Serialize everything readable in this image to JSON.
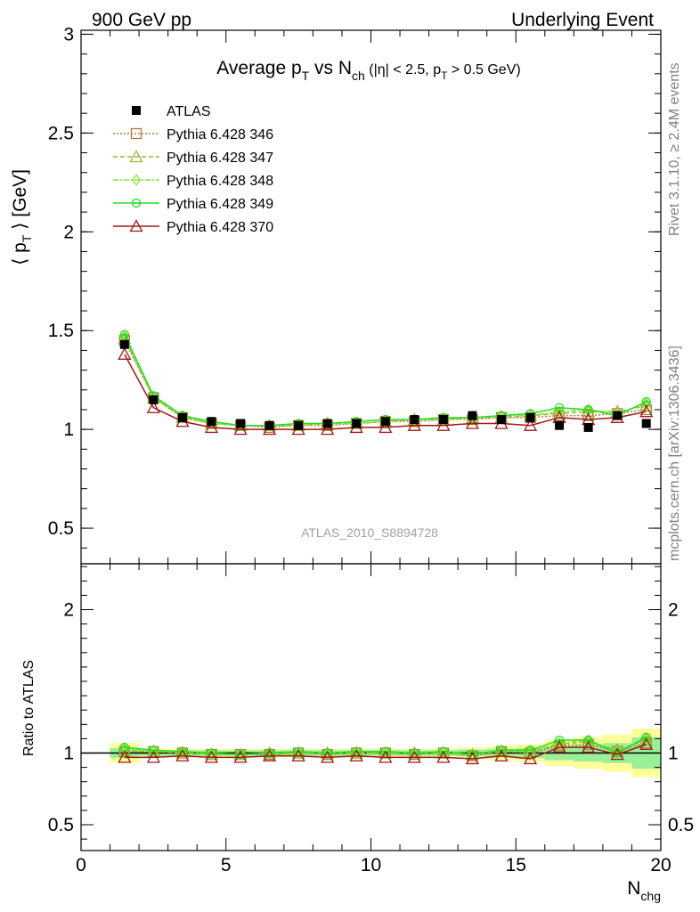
{
  "header": {
    "left": "900 GeV pp",
    "right": "Underlying Event"
  },
  "side": {
    "rivet": "Rivet 3.1.10, ≥ 2.4M events",
    "mcplots": "mcplots.cern.ch [arXiv:1306.3436]"
  },
  "chart_data": [
    {
      "type": "scatter",
      "title_main": "Average p",
      "title_sub_T": "T",
      "title_vs": " vs N",
      "title_sub_ch": "ch",
      "title_cond_a": " (|η| < 2.5, p",
      "title_cond_sub": "T",
      "title_cond_b": " > 0.5 GeV)",
      "watermark": "ATLAS_2010_S8894728",
      "ylabel_a": "⟨ p",
      "ylabel_sub": "T",
      "ylabel_b": " ⟩ [GeV]",
      "xlim": [
        0,
        20
      ],
      "ylim": [
        0.32,
        3.02
      ],
      "yticks": [
        0.5,
        1,
        1.5,
        2,
        2.5,
        3
      ],
      "ytick_labels": [
        "0.5",
        "1",
        "1.5",
        "2",
        "2.5",
        "3"
      ],
      "x": [
        1.5,
        2.5,
        3.5,
        4.5,
        5.5,
        6.5,
        7.5,
        8.5,
        9.5,
        10.5,
        11.5,
        12.5,
        13.5,
        14.5,
        15.5,
        16.5,
        17.5,
        18.5,
        19.5
      ],
      "data": {
        "name": "ATLAS",
        "color": "#000000",
        "values": [
          1.43,
          1.15,
          1.06,
          1.04,
          1.03,
          1.02,
          1.02,
          1.03,
          1.03,
          1.04,
          1.05,
          1.05,
          1.07,
          1.05,
          1.06,
          1.02,
          1.01,
          1.07,
          1.03
        ]
      },
      "series": [
        {
          "name": "Pythia 6.428 346",
          "color": "#b07a3a",
          "marker": "square",
          "dash": "2,2",
          "values": [
            1.45,
            1.16,
            1.06,
            1.03,
            1.02,
            1.01,
            1.02,
            1.02,
            1.03,
            1.04,
            1.04,
            1.05,
            1.05,
            1.06,
            1.06,
            1.07,
            1.07,
            1.08,
            1.1
          ]
        },
        {
          "name": "Pythia 6.428 347",
          "color": "#9ab82c",
          "marker": "triangle",
          "dash": "5,3",
          "values": [
            1.46,
            1.16,
            1.06,
            1.03,
            1.02,
            1.02,
            1.02,
            1.03,
            1.03,
            1.04,
            1.05,
            1.05,
            1.06,
            1.06,
            1.07,
            1.08,
            1.09,
            1.09,
            1.12
          ]
        },
        {
          "name": "Pythia 6.428 348",
          "color": "#88e62a",
          "marker": "diamond",
          "dash": "6,2,2,2",
          "values": [
            1.47,
            1.16,
            1.07,
            1.03,
            1.02,
            1.02,
            1.02,
            1.03,
            1.03,
            1.04,
            1.05,
            1.05,
            1.06,
            1.07,
            1.07,
            1.09,
            1.1,
            1.08,
            1.13
          ]
        },
        {
          "name": "Pythia 6.428 349",
          "color": "#22dd22",
          "marker": "circle",
          "dash": "",
          "values": [
            1.48,
            1.17,
            1.07,
            1.04,
            1.02,
            1.02,
            1.03,
            1.03,
            1.04,
            1.05,
            1.05,
            1.06,
            1.06,
            1.07,
            1.08,
            1.11,
            1.1,
            1.07,
            1.14
          ]
        },
        {
          "name": "Pythia 6.428 370",
          "color": "#a01818",
          "marker": "triangle-open",
          "dash": "",
          "values": [
            1.38,
            1.11,
            1.04,
            1.01,
            1.0,
            1.0,
            1.0,
            1.0,
            1.01,
            1.01,
            1.02,
            1.02,
            1.03,
            1.03,
            1.02,
            1.06,
            1.05,
            1.06,
            1.09
          ]
        }
      ]
    },
    {
      "type": "scatter",
      "ylabel": "Ratio to ATLAS",
      "xlabel_a": "N",
      "xlabel_sub": "chg",
      "xlim": [
        0,
        20
      ],
      "ylim": [
        0.32,
        2.32
      ],
      "xticks": [
        0,
        5,
        10,
        15,
        20
      ],
      "xtick_labels": [
        "0",
        "5",
        "10",
        "15",
        "20"
      ],
      "yticks": [
        0.5,
        1,
        2
      ],
      "ytick_labels": [
        "0.5",
        "1",
        "2"
      ],
      "reference": 1,
      "band_stat": [
        0.035,
        0.02,
        0.02,
        0.02,
        0.02,
        0.02,
        0.02,
        0.02,
        0.02,
        0.02,
        0.02,
        0.02,
        0.025,
        0.03,
        0.035,
        0.05,
        0.06,
        0.07,
        0.11
      ],
      "band_total": [
        0.07,
        0.03,
        0.03,
        0.03,
        0.03,
        0.03,
        0.03,
        0.03,
        0.03,
        0.03,
        0.03,
        0.03,
        0.04,
        0.05,
        0.06,
        0.09,
        0.11,
        0.13,
        0.17
      ],
      "series": [
        {
          "name": "Pythia 6.428 346",
          "values": [
            1.01,
            1.01,
            1.0,
            0.99,
            0.99,
            0.99,
            1.0,
            0.99,
            1.0,
            1.0,
            0.99,
            1.0,
            0.98,
            1.01,
            1.0,
            1.05,
            1.06,
            1.01,
            1.07
          ]
        },
        {
          "name": "Pythia 6.428 347",
          "values": [
            1.02,
            1.01,
            1.0,
            0.99,
            0.99,
            1.0,
            1.0,
            1.0,
            1.0,
            1.0,
            1.0,
            1.0,
            0.99,
            1.01,
            1.01,
            1.06,
            1.08,
            1.02,
            1.09
          ]
        },
        {
          "name": "Pythia 6.428 348",
          "values": [
            1.03,
            1.01,
            1.01,
            0.99,
            0.99,
            1.0,
            1.0,
            1.0,
            1.0,
            1.0,
            1.0,
            1.0,
            0.99,
            1.02,
            1.01,
            1.07,
            1.09,
            1.01,
            1.1
          ]
        },
        {
          "name": "Pythia 6.428 349",
          "values": [
            1.04,
            1.02,
            1.01,
            1.0,
            0.99,
            1.0,
            1.01,
            1.0,
            1.01,
            1.01,
            1.0,
            1.01,
            0.99,
            1.02,
            1.02,
            1.09,
            1.09,
            1.0,
            1.11
          ]
        },
        {
          "name": "Pythia 6.428 370",
          "values": [
            0.97,
            0.97,
            0.98,
            0.97,
            0.97,
            0.98,
            0.98,
            0.97,
            0.98,
            0.97,
            0.97,
            0.97,
            0.96,
            0.98,
            0.96,
            1.04,
            1.04,
            0.99,
            1.06
          ]
        }
      ]
    }
  ]
}
